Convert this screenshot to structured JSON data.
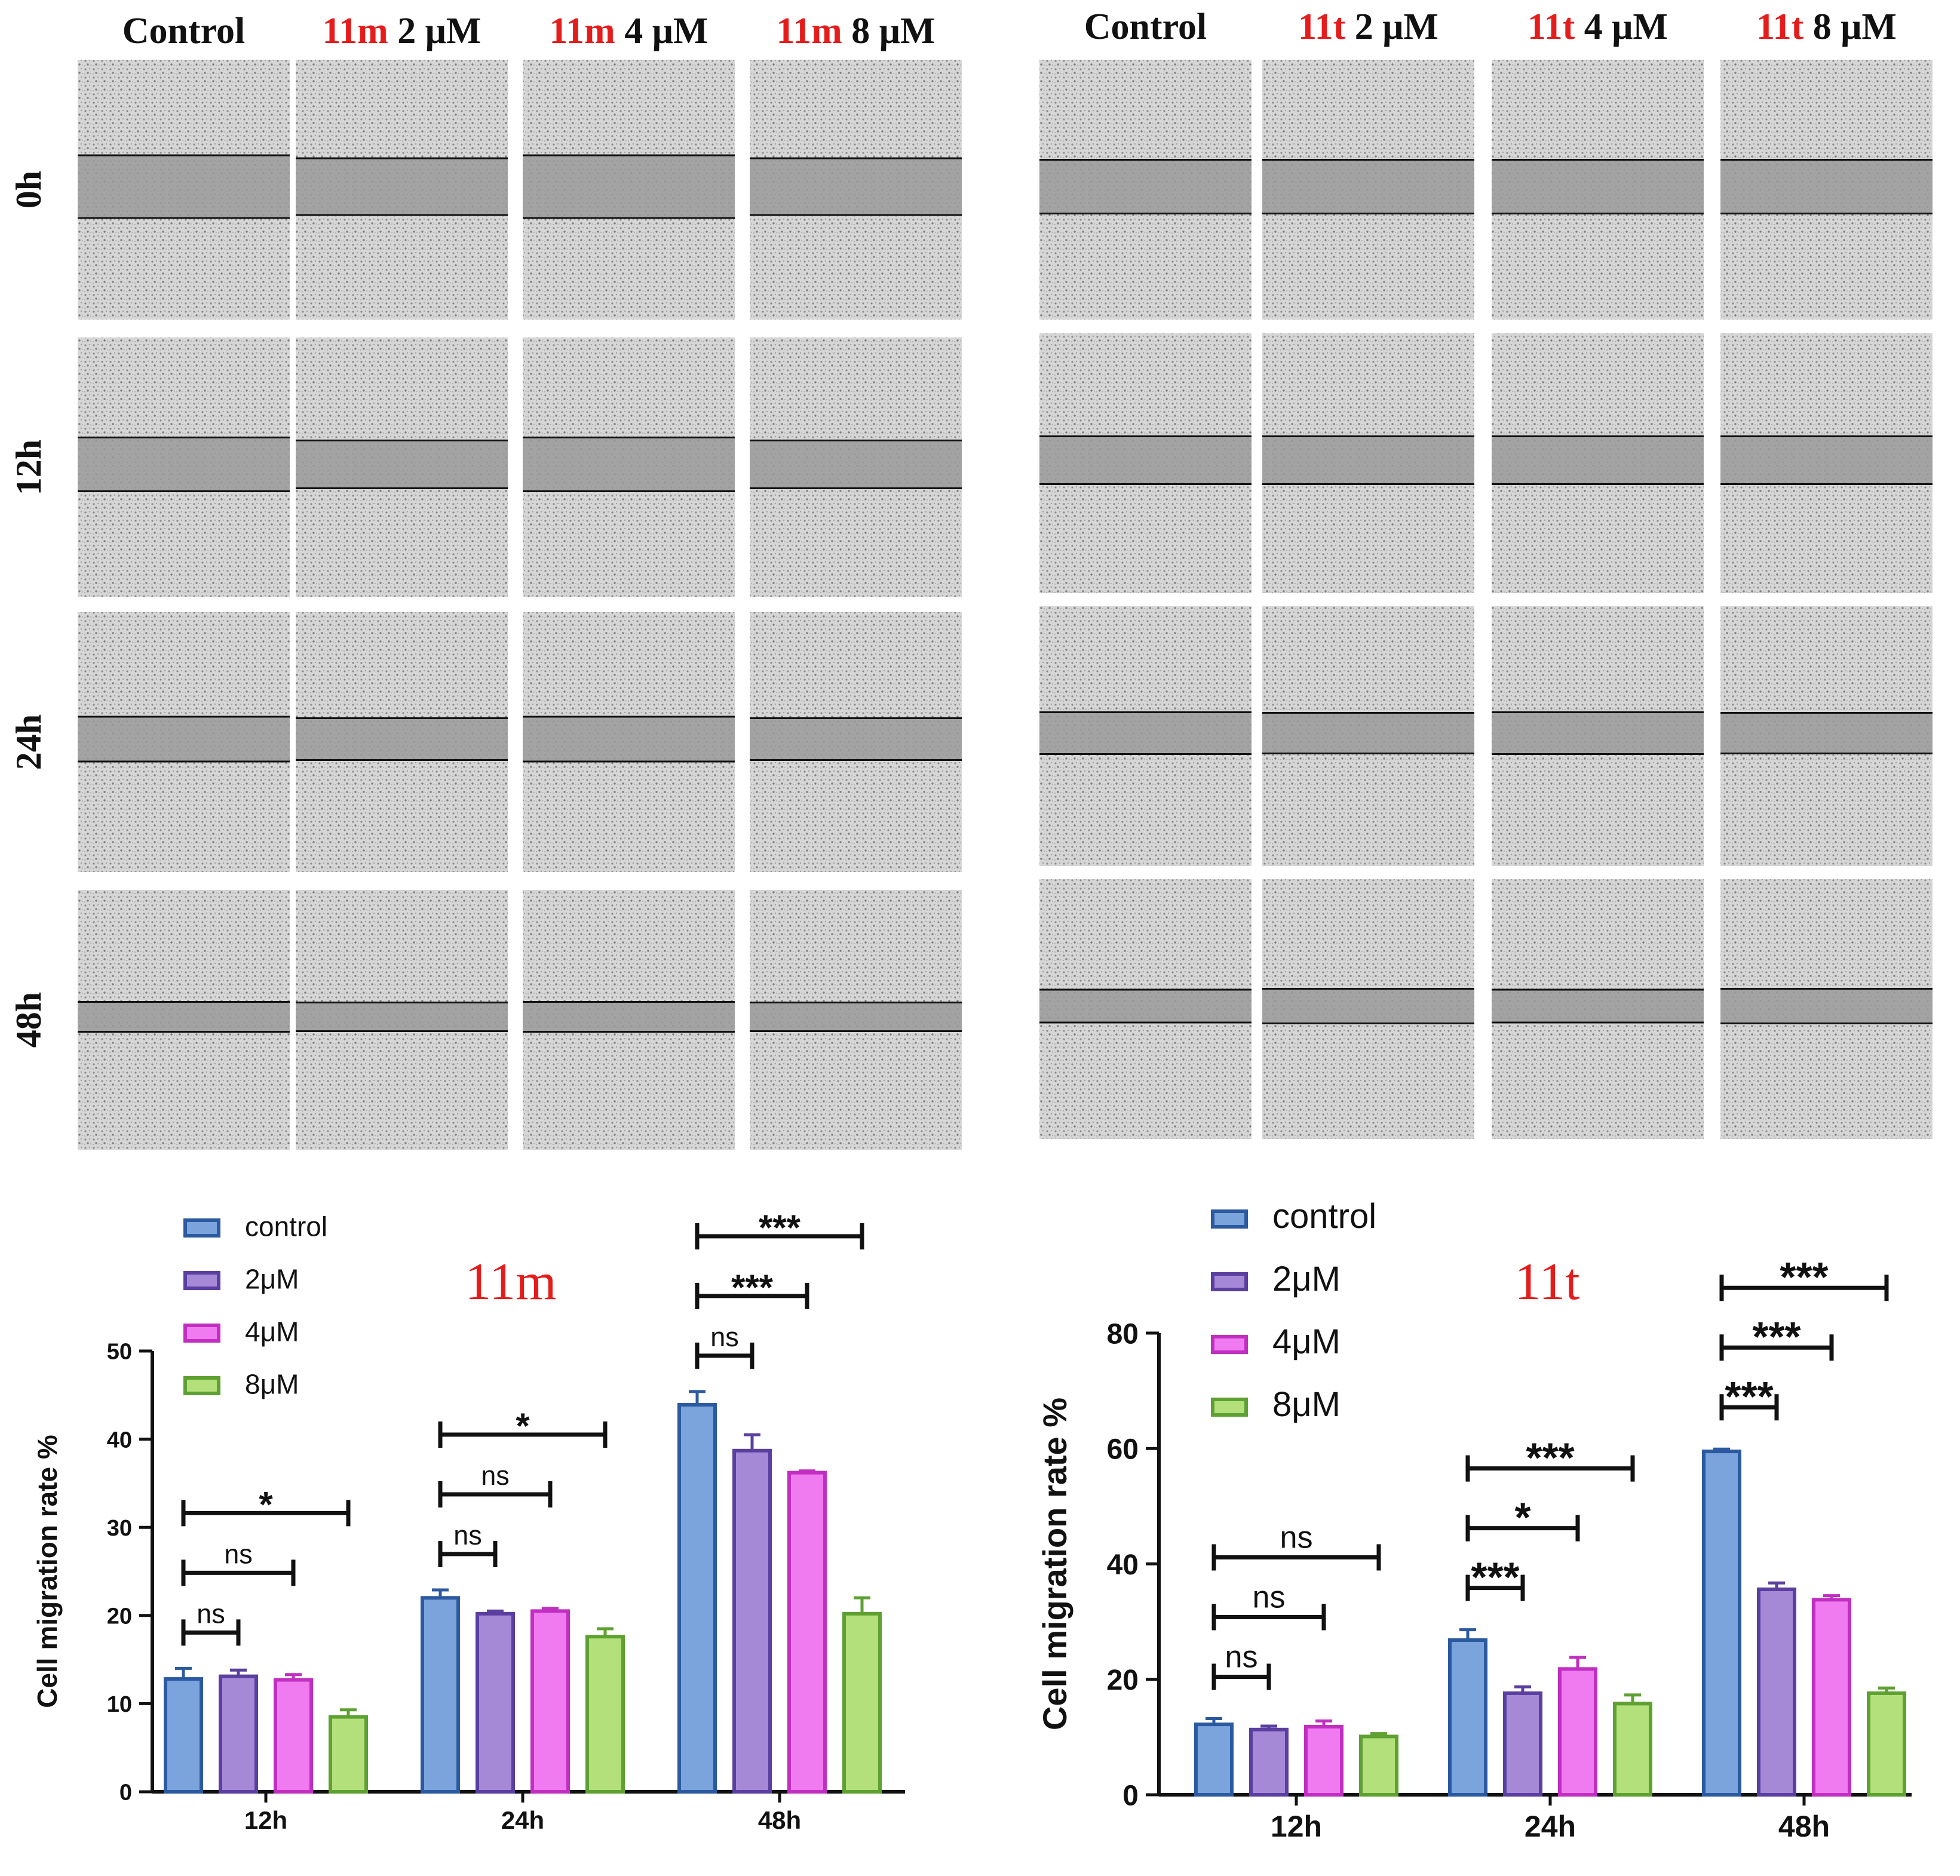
{
  "colors": {
    "control": "#7ba4dc",
    "control_edge": "#2c5aa0",
    "c2": "#a689d6",
    "c2_edge": "#5a3fa0",
    "c4": "#f07af0",
    "c4_edge": "#c12fc1",
    "c8": "#b3e07a",
    "c8_edge": "#5fa032",
    "compound_red": "#e51c1c",
    "micrograph": "#cfcfcf",
    "scratch": "#9a9a9a"
  },
  "panels": [
    {
      "column_headers": [
        {
          "compound": "",
          "rest": "Control"
        },
        {
          "compound": "11m",
          "rest": " 2 μM"
        },
        {
          "compound": "11m",
          "rest": " 4 μM"
        },
        {
          "compound": "11m",
          "rest": " 8 μM"
        }
      ],
      "row_labels": [
        "0h",
        "12h",
        "24h",
        "48h"
      ]
    },
    {
      "column_headers": [
        {
          "compound": "",
          "rest": "Control"
        },
        {
          "compound": "11t",
          "rest": " 2 μM"
        },
        {
          "compound": "11t",
          "rest": " 4 μM"
        },
        {
          "compound": "11t",
          "rest": " 8 μM"
        }
      ],
      "row_labels": []
    }
  ],
  "chart_data": [
    {
      "type": "bar",
      "compound_label": "11m",
      "ylabel": "Cell migration rate %",
      "ylim": [
        0,
        50
      ],
      "yticks": [
        0,
        10,
        20,
        30,
        40,
        50
      ],
      "categories": [
        "12h",
        "24h",
        "48h"
      ],
      "legend_position": "top-left",
      "series": [
        {
          "name": "control",
          "values": [
            12.8,
            22.0,
            43.9
          ],
          "errors": [
            1.2,
            0.9,
            1.5
          ]
        },
        {
          "name": "2μM",
          "values": [
            13.1,
            20.2,
            38.7
          ],
          "errors": [
            0.7,
            0.3,
            1.8
          ]
        },
        {
          "name": "4μM",
          "values": [
            12.7,
            20.5,
            36.2
          ],
          "errors": [
            0.6,
            0.3,
            0.2
          ]
        },
        {
          "name": "8μM",
          "values": [
            8.5,
            17.6,
            20.2
          ],
          "errors": [
            0.8,
            0.9,
            1.8
          ]
        }
      ],
      "significance": [
        {
          "group": 0,
          "to": 1,
          "label": "ns"
        },
        {
          "group": 0,
          "to": 2,
          "label": "ns"
        },
        {
          "group": 0,
          "to": 3,
          "label": "*"
        },
        {
          "group": 1,
          "to": 1,
          "label": "ns"
        },
        {
          "group": 1,
          "to": 2,
          "label": "ns"
        },
        {
          "group": 1,
          "to": 3,
          "label": "*"
        },
        {
          "group": 2,
          "to": 1,
          "label": "ns"
        },
        {
          "group": 2,
          "to": 2,
          "label": "***"
        },
        {
          "group": 2,
          "to": 3,
          "label": "***"
        }
      ]
    },
    {
      "type": "bar",
      "compound_label": "11t",
      "ylabel": "Cell migration rate %",
      "ylim": [
        0,
        80
      ],
      "yticks": [
        0,
        20,
        40,
        60,
        80
      ],
      "categories": [
        "12h",
        "24h",
        "48h"
      ],
      "legend_position": "top-left",
      "series": [
        {
          "name": "control",
          "values": [
            12.2,
            26.8,
            59.5
          ],
          "errors": [
            1.0,
            1.8,
            0.4
          ]
        },
        {
          "name": "2μM",
          "values": [
            11.3,
            17.6,
            35.6
          ],
          "errors": [
            0.6,
            1.1,
            1.1
          ]
        },
        {
          "name": "4μM",
          "values": [
            11.8,
            21.8,
            33.8
          ],
          "errors": [
            1.0,
            2.0,
            0.7
          ]
        },
        {
          "name": "8μM",
          "values": [
            10.1,
            15.8,
            17.6
          ],
          "errors": [
            0.5,
            1.5,
            0.9
          ]
        }
      ],
      "significance": [
        {
          "group": 0,
          "to": 1,
          "label": "ns"
        },
        {
          "group": 0,
          "to": 2,
          "label": "ns"
        },
        {
          "group": 0,
          "to": 3,
          "label": "ns"
        },
        {
          "group": 1,
          "to": 1,
          "label": "***"
        },
        {
          "group": 1,
          "to": 2,
          "label": "*"
        },
        {
          "group": 1,
          "to": 3,
          "label": "***"
        },
        {
          "group": 2,
          "to": 1,
          "label": "***"
        },
        {
          "group": 2,
          "to": 2,
          "label": "***"
        },
        {
          "group": 2,
          "to": 3,
          "label": "***"
        }
      ]
    }
  ]
}
